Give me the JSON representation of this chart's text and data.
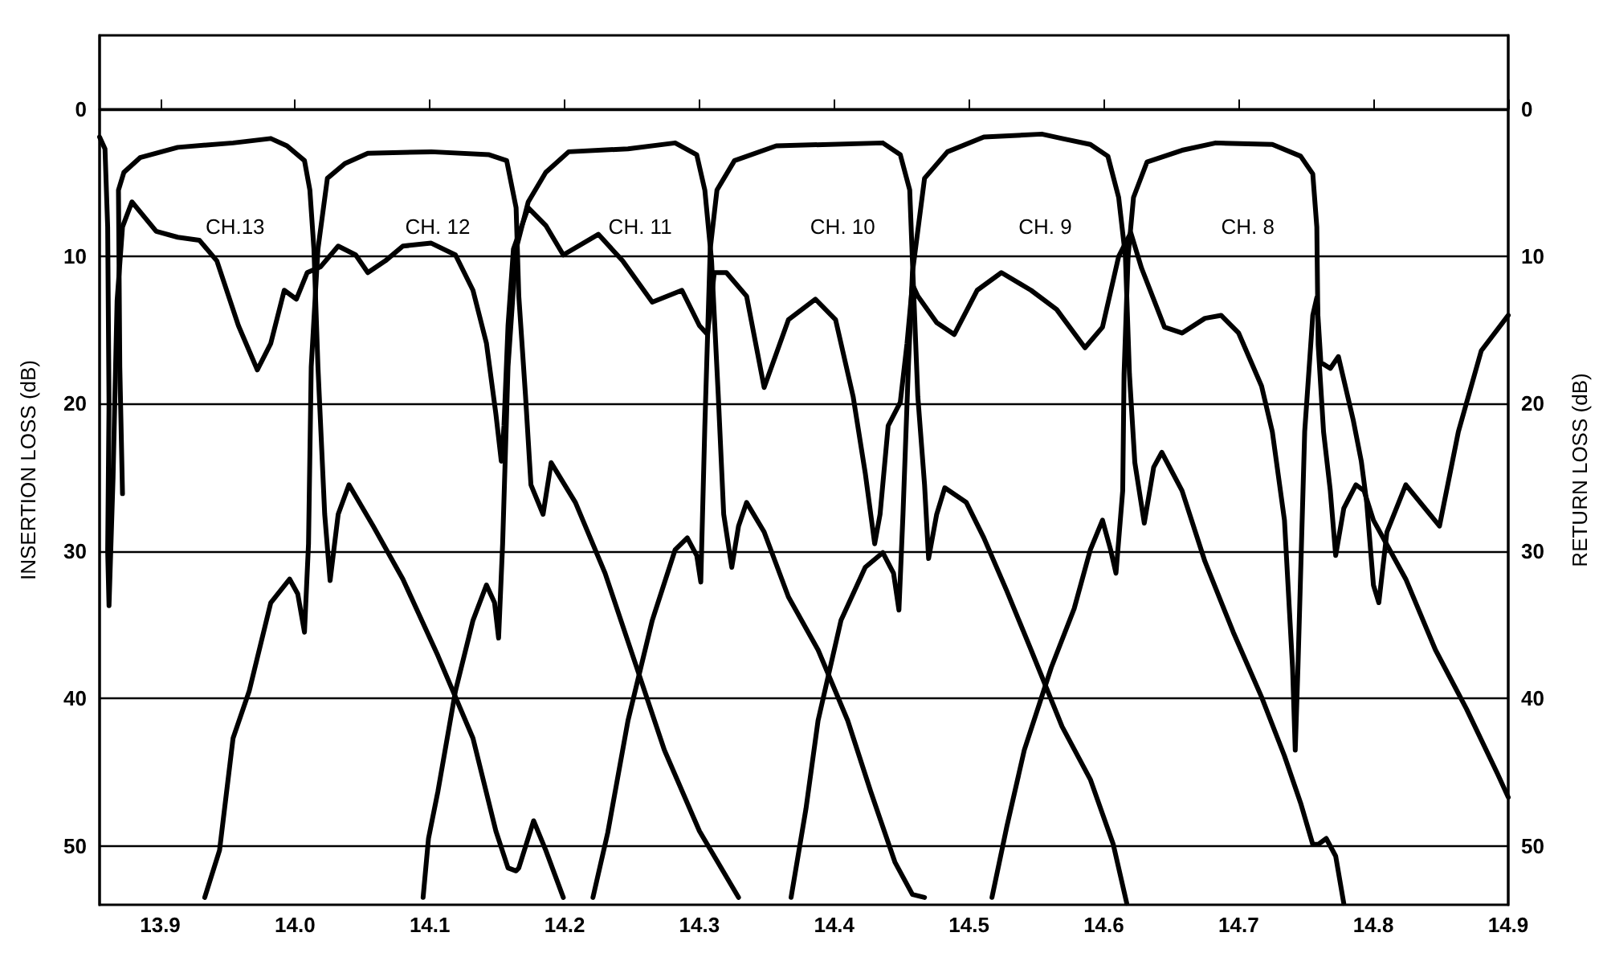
{
  "chart_data": {
    "type": "line",
    "xlim": [
      13.855,
      14.9
    ],
    "xticks": [
      13.9,
      {
        "value": 14,
        "label": "14.0"
      },
      14.1,
      14.2,
      14.3,
      14.4,
      14.5,
      14.6,
      14.7,
      14.8,
      14.9
    ],
    "ylim": [
      54,
      -5
    ],
    "yticks": [
      0,
      10,
      20,
      30,
      40,
      50
    ],
    "y2lim": [
      54,
      -5
    ],
    "y2ticks": [
      0,
      10,
      20,
      30,
      40,
      50
    ],
    "ylabel": "INSERTION LOSS (dB)",
    "y2label": "RETURN LOSS (dB)",
    "grid": "y",
    "marker": "none",
    "line_style": "solid",
    "annotations": [
      "CH.13",
      "CH. 12",
      "CH. 11",
      "CH. 10",
      "CH. 9",
      "CH. 8"
    ],
    "series": [
      {
        "color": "#000000",
        "x": [
          13.872,
          13.87,
          13.869,
          13.873,
          13.885,
          13.913,
          13.954,
          13.982,
          13.994,
          14.007,
          14.011,
          14.014,
          14.017,
          14.022,
          14.026,
          14.032,
          14.04,
          14.058,
          14.08,
          14.106,
          14.132,
          14.149,
          14.158,
          14.164,
          14.166,
          14.177,
          14.186,
          14.199
        ],
        "values": [
          26.1,
          17.5,
          5.5,
          4.3,
          3.3,
          2.6,
          2.3,
          2.0,
          2.5,
          3.5,
          5.5,
          9.5,
          17.5,
          27.5,
          32,
          27.5,
          25.5,
          28.3,
          31.9,
          37.1,
          42.7,
          49,
          51.5,
          51.7,
          51.5,
          48.3,
          50.3,
          53.5
        ]
      },
      {
        "color": "#000000",
        "x": [
          13.933,
          13.944,
          13.954,
          13.966,
          13.982,
          13.996,
          14.002,
          14.007,
          14.01,
          14.012,
          14.017,
          14.024,
          14.037,
          14.054,
          14.101,
          14.144,
          14.157,
          14.164,
          14.166,
          14.171,
          14.175,
          14.184,
          14.19,
          14.208,
          14.23,
          14.252,
          14.274,
          14.3,
          14.329
        ],
        "values": [
          53.5,
          50.3,
          42.7,
          39.5,
          33.5,
          31.9,
          32.9,
          35.5,
          29.5,
          17.5,
          9.5,
          4.7,
          3.7,
          3.0,
          2.9,
          3.1,
          3.5,
          6.7,
          12.7,
          19.5,
          25.5,
          27.5,
          24.0,
          26.7,
          31.5,
          37.5,
          43.5,
          49.0,
          53.5
        ]
      },
      {
        "color": "#000000",
        "x": [
          14.095,
          14.099,
          14.106,
          14.119,
          14.132,
          14.142,
          14.148,
          14.151,
          14.154,
          14.158,
          14.164,
          14.173,
          14.186,
          14.203,
          14.247,
          14.282,
          14.298,
          14.304,
          14.309,
          14.314,
          14.318,
          14.324,
          14.329,
          14.335,
          14.348,
          14.366,
          14.388,
          14.41,
          14.427,
          14.445,
          14.458,
          14.467
        ],
        "values": [
          53.5,
          49.5,
          46.3,
          39.5,
          34.7,
          32.3,
          33.5,
          35.9,
          29.5,
          17.5,
          9.5,
          6.3,
          4.3,
          2.9,
          2.7,
          2.3,
          3.1,
          5.5,
          10.3,
          19.5,
          27.5,
          31.1,
          28.3,
          26.7,
          28.7,
          33.1,
          36.7,
          41.5,
          46.3,
          51.1,
          53.3,
          53.5
        ]
      },
      {
        "color": "#000000",
        "x": [
          14.221,
          14.232,
          14.247,
          14.265,
          14.282,
          14.291,
          14.298,
          14.301,
          14.304,
          14.308,
          14.313,
          14.326,
          14.357,
          14.436,
          14.449,
          14.456,
          14.458,
          14.462,
          14.467,
          14.47,
          14.476,
          14.482,
          14.498,
          14.511,
          14.528,
          14.546,
          14.569,
          14.59,
          14.607,
          14.617
        ],
        "values": [
          53.5,
          49.1,
          41.5,
          34.7,
          29.9,
          29.1,
          30.3,
          32.1,
          21.5,
          9.5,
          5.5,
          3.5,
          2.5,
          2.3,
          3.1,
          5.5,
          10.3,
          19.5,
          25.5,
          30.5,
          27.5,
          25.7,
          26.7,
          29.1,
          32.7,
          36.7,
          41.9,
          45.5,
          49.9,
          53.9
        ]
      },
      {
        "color": "#000000",
        "x": [
          14.368,
          14.379,
          14.388,
          14.405,
          14.423,
          14.436,
          14.444,
          14.448,
          14.451,
          14.455,
          14.458,
          14.467,
          14.484,
          14.511,
          14.554,
          14.569,
          14.59,
          14.603,
          14.611,
          14.616,
          14.619,
          14.623,
          14.63,
          14.637,
          14.643,
          14.658,
          14.675,
          14.696,
          14.717,
          14.734,
          14.746,
          14.755,
          14.759,
          14.765,
          14.772,
          14.778
        ],
        "values": [
          53.5,
          47.5,
          41.5,
          34.7,
          31.1,
          30.1,
          31.5,
          34.0,
          27.5,
          17.5,
          11.1,
          4.7,
          2.9,
          1.9,
          1.7,
          2.0,
          2.4,
          3.2,
          6.0,
          10.0,
          18.0,
          24.0,
          28.1,
          24.3,
          23.3,
          25.9,
          30.7,
          35.5,
          39.9,
          43.9,
          47.1,
          49.9,
          49.9,
          49.5,
          50.7,
          53.9
        ]
      },
      {
        "color": "#000000",
        "x": [
          14.517,
          14.528,
          14.541,
          14.561,
          14.578,
          14.59,
          14.599,
          14.605,
          14.609,
          14.614,
          14.615,
          14.618,
          14.622,
          14.632,
          14.658,
          14.683,
          14.725,
          14.746,
          14.755,
          14.758,
          14.759,
          14.763,
          14.768,
          14.772,
          14.778,
          14.787,
          14.793,
          14.8,
          14.824,
          14.846,
          14.869,
          14.892,
          14.9
        ],
        "values": [
          53.5,
          48.7,
          43.5,
          37.9,
          33.9,
          29.9,
          27.9,
          29.9,
          31.5,
          25.9,
          18.0,
          10.0,
          6.0,
          3.6,
          2.8,
          2.3,
          2.4,
          3.2,
          4.4,
          8.0,
          16.0,
          21.9,
          25.9,
          30.3,
          27.1,
          25.5,
          25.9,
          27.9,
          31.9,
          36.7,
          40.7,
          45.1,
          46.7
        ]
      },
      {
        "color": "#000000",
        "x": [
          13.855,
          13.859,
          13.861,
          13.862,
          13.861,
          13.862,
          13.865,
          13.868,
          13.872,
          13.879,
          13.897,
          13.913,
          13.929,
          13.942,
          13.958,
          13.972,
          13.982,
          13.992,
          14.001,
          14.009,
          14.019,
          14.032,
          14.045,
          14.054,
          14.067,
          14.08,
          14.101,
          14.119,
          14.132,
          14.142,
          14.149,
          14.153,
          14.155,
          14.158,
          14.162,
          14.173,
          14.186,
          14.199,
          14.225,
          14.243,
          14.265,
          14.287,
          14.3,
          14.306,
          14.311,
          14.32,
          14.335,
          14.348,
          14.366,
          14.386,
          14.401,
          14.414,
          14.423,
          14.43,
          14.434,
          14.44,
          14.449,
          14.454,
          14.458,
          14.462,
          14.476,
          14.489,
          14.506,
          14.524,
          14.546,
          14.565,
          14.586,
          14.599,
          14.611,
          14.62,
          14.628,
          14.645,
          14.658,
          14.675,
          14.687,
          14.7,
          14.717,
          14.725,
          14.734,
          14.74,
          14.742,
          14.744,
          14.749,
          14.755,
          14.758,
          14.761,
          14.768,
          14.774,
          14.785,
          14.791,
          14.795,
          14.8,
          14.804,
          14.81,
          14.824,
          14.849,
          14.863,
          14.88,
          14.9
        ],
        "values": [
          1.9,
          2.7,
          8,
          20,
          30,
          33.7,
          25,
          13,
          8,
          6.3,
          8.3,
          8.7,
          8.9,
          10.3,
          14.7,
          17.7,
          15.9,
          12.3,
          12.9,
          11.1,
          10.7,
          9.3,
          9.9,
          11.1,
          10.3,
          9.3,
          9.1,
          9.9,
          12.3,
          15.9,
          20.7,
          23.9,
          21.5,
          14.7,
          9.5,
          6.7,
          7.9,
          9.9,
          8.5,
          10.3,
          13.1,
          12.3,
          14.7,
          15.3,
          11.1,
          11.1,
          12.7,
          18.9,
          14.3,
          12.9,
          14.3,
          19.5,
          24.7,
          29.5,
          27.5,
          21.5,
          19.9,
          15.9,
          11.9,
          12.7,
          14.5,
          15.3,
          12.3,
          11.1,
          12.3,
          13.6,
          16.2,
          14.8,
          10.0,
          8.4,
          10.8,
          14.8,
          15.2,
          14.2,
          14.0,
          15.2,
          18.8,
          21.9,
          27.9,
          37.9,
          43.5,
          37.9,
          21.9,
          14.0,
          12.8,
          17.2,
          17.6,
          16.8,
          21.1,
          23.9,
          26.7,
          32.3,
          33.5,
          28.7,
          25.5,
          28.3,
          21.9,
          16.4,
          14.0
        ]
      }
    ]
  }
}
